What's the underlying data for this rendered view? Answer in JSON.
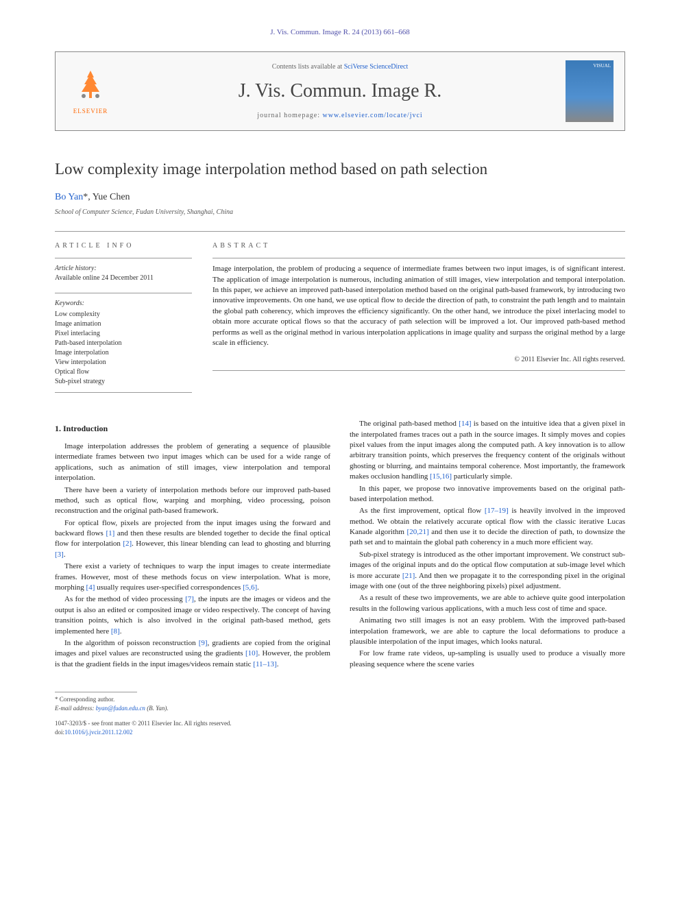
{
  "journal_ref": "J. Vis. Commun. Image R. 24 (2013) 661–668",
  "header": {
    "contents_prefix": "Contents lists available at ",
    "contents_link": "SciVerse ScienceDirect",
    "journal_title": "J. Vis. Commun. Image R.",
    "homepage_prefix": "journal homepage: ",
    "homepage_link": "www.elsevier.com/locate/jvci",
    "elsevier_label": "ELSEVIER",
    "cover_label": "VISUAL"
  },
  "title": "Low complexity image interpolation method based on path selection",
  "authors": {
    "list": "Bo Yan",
    "corr_marker": "*",
    "second": ", Yue Chen"
  },
  "affiliation": "School of Computer Science, Fudan University, Shanghai, China",
  "article_info": {
    "heading": "ARTICLE INFO",
    "history_label": "Article history:",
    "history_text": "Available online 24 December 2011",
    "keywords_label": "Keywords:",
    "keywords": [
      "Low complexity",
      "Image animation",
      "Pixel interlacing",
      "Path-based interpolation",
      "Image interpolation",
      "View interpolation",
      "Optical flow",
      "Sub-pixel strategy"
    ]
  },
  "abstract": {
    "heading": "ABSTRACT",
    "text": "Image interpolation, the problem of producing a sequence of intermediate frames between two input images, is of significant interest. The application of image interpolation is numerous, including animation of still images, view interpolation and temporal interpolation. In this paper, we achieve an improved path-based interpolation method based on the original path-based framework, by introducing two innovative improvements. On one hand, we use optical flow to decide the direction of path, to constraint the path length and to maintain the global path coherency, which improves the efficiency significantly. On the other hand, we introduce the pixel interlacing model to obtain more accurate optical flows so that the accuracy of path selection will be improved a lot. Our improved path-based method performs as well as the original method in various interpolation applications in image quality and surpass the original method by a large scale in efficiency.",
    "copyright": "© 2011 Elsevier Inc. All rights reserved."
  },
  "body": {
    "section_heading": "1. Introduction",
    "paragraphs": [
      "Image interpolation addresses the problem of generating a sequence of plausible intermediate frames between two input images which can be used for a wide range of applications, such as animation of still images, view interpolation and temporal interpolation.",
      "There have been a variety of interpolation methods before our improved path-based method, such as optical flow, warping and morphing, video processing, poison reconstruction and the original path-based framework.",
      "For optical flow, pixels are projected from the input images using the forward and backward flows [1] and then these results are blended together to decide the final optical flow for interpolation [2]. However, this linear blending can lead to ghosting and blurring [3].",
      "There exist a variety of techniques to warp the input images to create intermediate frames. However, most of these methods focus on view interpolation. What is more, morphing [4] usually requires user-specified correspondences [5,6].",
      "As for the method of video processing [7], the inputs are the images or videos and the output is also an edited or composited image or video respectively. The concept of having transition points, which is also involved in the original path-based method, gets implemented here [8].",
      "In the algorithm of poisson reconstruction [9], gradients are copied from the original images and pixel values are reconstructed using the gradients [10]. However, the problem is that the gradient fields in the input images/videos remain static [11–13].",
      "The original path-based method [14] is based on the intuitive idea that a given pixel in the interpolated frames traces out a path in the source images. It simply moves and copies pixel values from the input images along the computed path. A key innovation is to allow arbitrary transition points, which preserves the frequency content of the originals without ghosting or blurring, and maintains temporal coherence. Most importantly, the framework makes occlusion handling [15,16] particularly simple.",
      "In this paper, we propose two innovative improvements based on the original path-based interpolation method.",
      "As the first improvement, optical flow [17–19] is heavily involved in the improved method. We obtain the relatively accurate optical flow with the classic iterative Lucas Kanade algorithm [20,21] and then use it to decide the direction of path, to downsize the path set and to maintain the global path coherency in a much more efficient way.",
      "Sub-pixel strategy is introduced as the other important improvement. We construct sub-images of the original inputs and do the optical flow computation at sub-image level which is more accurate [21]. And then we propagate it to the corresponding pixel in the original image with one (out of the three neighboring pixels) pixel adjustment.",
      "As a result of these two improvements, we are able to achieve quite good interpolation results in the following various applications, with a much less cost of time and space.",
      "Animating two still images is not an easy problem. With the improved path-based interpolation framework, we are able to capture the local deformations to produce a plausible interpolation of the input images, which looks natural.",
      "For low frame rate videos, up-sampling is usually used to produce a visually more pleasing sequence where the scene varies"
    ]
  },
  "footer": {
    "corr_label": "* Corresponding author.",
    "email_label": "E-mail address:",
    "email": "byan@fudan.edu.cn",
    "email_suffix": "(B. Yan).",
    "issn": "1047-3203/$ - see front matter © 2011 Elsevier Inc. All rights reserved.",
    "doi_label": "doi:",
    "doi": "10.1016/j.jvcir.2011.12.002"
  },
  "colors": {
    "link": "#2060cc",
    "text": "#222222",
    "heading": "#555555",
    "elsevier_orange": "#ff6600",
    "border": "#999999"
  }
}
